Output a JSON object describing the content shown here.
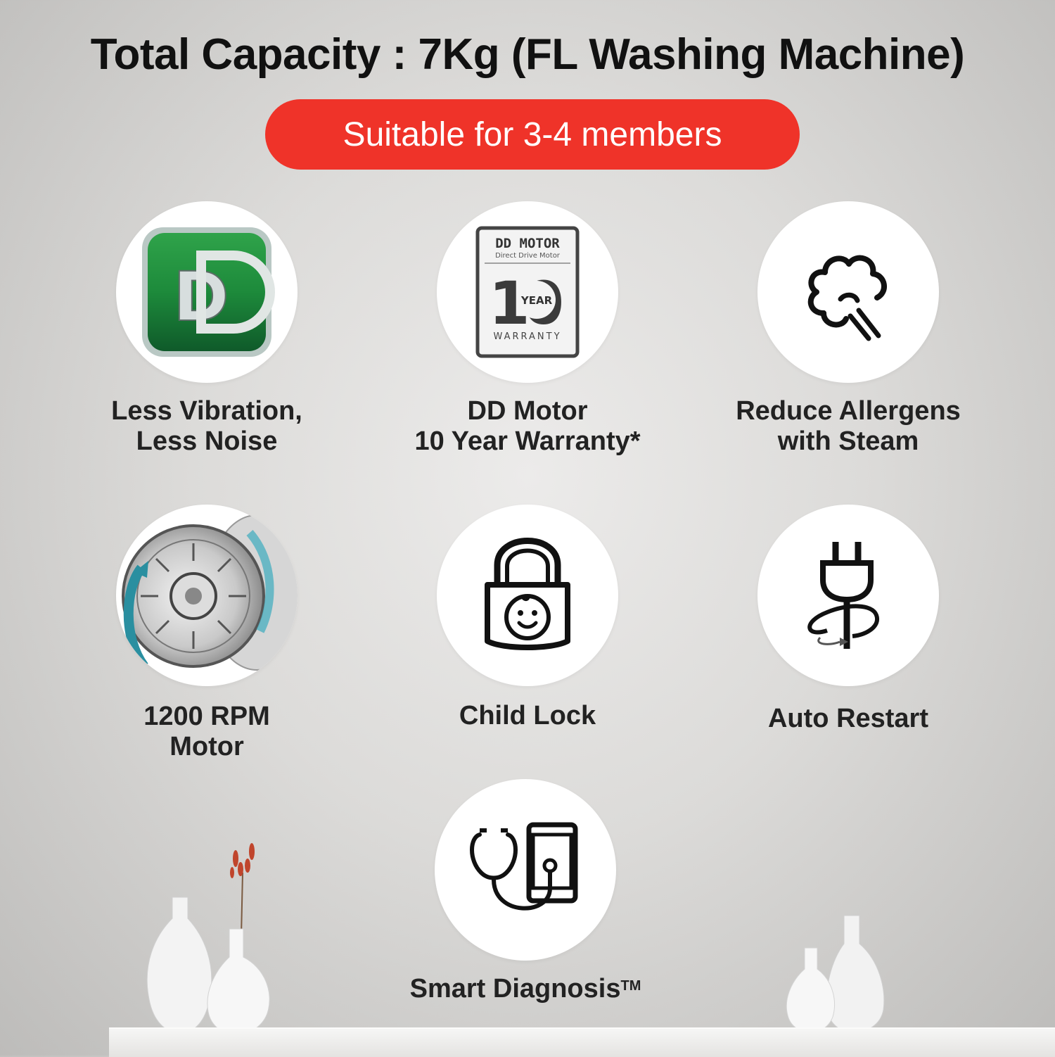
{
  "header": {
    "title": "Total Capacity : 7Kg (FL Washing Machine)",
    "badge": "Suitable for 3-4 members"
  },
  "features": [
    {
      "icon": "dd-logo-icon",
      "lines": [
        "Less Vibration,",
        "Less Noise"
      ]
    },
    {
      "icon": "warranty-badge-icon",
      "lines": [
        "DD Motor",
        "10 Year Warranty*"
      ],
      "badge": {
        "top": "DD MOTOR",
        "sub": "Direct Drive Motor",
        "number": "10",
        "year": "YEAR",
        "bottom": "WARRANTY"
      }
    },
    {
      "icon": "steam-icon",
      "lines": [
        "Reduce Allergens",
        "with Steam"
      ]
    },
    {
      "icon": "motor-drum-icon",
      "lines": [
        "1200 RPM",
        "Motor"
      ]
    },
    {
      "icon": "child-lock-icon",
      "lines": [
        "Child Lock"
      ]
    },
    {
      "icon": "auto-restart-plug-icon",
      "lines": [
        "Auto Restart"
      ]
    },
    {
      "icon": "stethoscope-phone-icon",
      "lines": [
        "Smart Diagnosis"
      ],
      "superscript": "TM"
    }
  ],
  "colors": {
    "accent_red": "#ef3329",
    "dd_green": "#1c7a3a",
    "text": "#222222"
  }
}
